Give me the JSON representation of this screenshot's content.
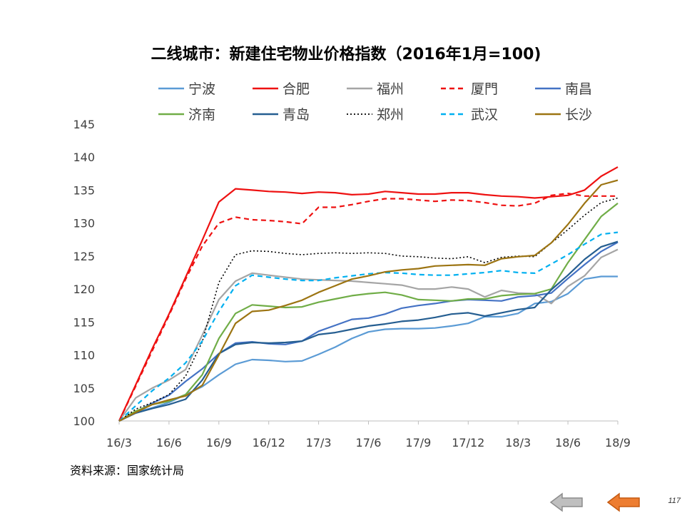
{
  "page": {
    "title": "二线城市：新建住宅物业价格指数（2016年1月=100)",
    "source": "资料来源：国家统计局",
    "page_number": "117"
  },
  "nav": {
    "prev_icon": "prev-arrow-icon",
    "next_icon": "next-arrow-icon"
  },
  "chart_data": {
    "type": "line",
    "title": "二线城市：新建住宅物业价格指数（2016年1月=100)",
    "xlabel": "",
    "ylabel": "",
    "ylim": [
      100,
      145
    ],
    "yticks": [
      100,
      105,
      110,
      115,
      120,
      125,
      130,
      135,
      140,
      145
    ],
    "xticks": [
      "16/3",
      "16/6",
      "16/9",
      "16/12",
      "17/3",
      "17/6",
      "17/9",
      "17/12",
      "18/3",
      "18/6",
      "18/9"
    ],
    "x": [
      "16/3",
      "16/4",
      "16/5",
      "16/6",
      "16/7",
      "16/8",
      "16/9",
      "16/10",
      "16/11",
      "16/12",
      "17/1",
      "17/2",
      "17/3",
      "17/4",
      "17/5",
      "17/6",
      "17/7",
      "17/8",
      "17/9",
      "17/10",
      "17/11",
      "17/12",
      "18/1",
      "18/2",
      "18/3",
      "18/4",
      "18/5",
      "18/6",
      "18/7",
      "18/8",
      "18/9"
    ],
    "grid": false,
    "legend": "top",
    "series": [
      {
        "name": "宁波",
        "color": "#5b9bd5",
        "dash": "solid",
        "values": [
          100,
          101.3,
          102,
          102.8,
          104,
          105.2,
          107,
          108.6,
          109.3,
          109.2,
          109,
          109.1,
          110.1,
          111.2,
          112.5,
          113.5,
          113.9,
          114,
          114,
          114.1,
          114.4,
          114.8,
          115.8,
          115.8,
          116.3,
          117.8,
          118.1,
          119.3,
          121.5,
          121.9,
          121.9
        ]
      },
      {
        "name": "合肥",
        "color": "#ee1111",
        "dash": "solid",
        "values": [
          100,
          105.5,
          111,
          116.2,
          121.8,
          127.4,
          133.2,
          135.2,
          135,
          134.8,
          134.7,
          134.5,
          134.7,
          134.6,
          134.3,
          134.4,
          134.8,
          134.6,
          134.4,
          134.4,
          134.6,
          134.6,
          134.3,
          134.1,
          134,
          133.8,
          134,
          134.2,
          135,
          137.1,
          138.5
        ]
      },
      {
        "name": "福州",
        "color": "#a5a5a5",
        "dash": "solid",
        "values": [
          100,
          103.5,
          105,
          106.2,
          107.8,
          113,
          118.4,
          121.2,
          122.4,
          122.1,
          121.8,
          121.5,
          121.4,
          121.3,
          121.2,
          121,
          120.8,
          120.6,
          120,
          120,
          120.3,
          120,
          118.8,
          119.8,
          119.4,
          119.3,
          117.8,
          120.4,
          122,
          124.8,
          126
        ]
      },
      {
        "name": "厦門",
        "color": "#ee1111",
        "dash": "dash",
        "values": [
          100,
          105.3,
          110.7,
          116,
          121.5,
          126.5,
          130,
          130.9,
          130.5,
          130.4,
          130.2,
          129.9,
          132.4,
          132.4,
          132.8,
          133.3,
          133.7,
          133.7,
          133.5,
          133.3,
          133.5,
          133.4,
          133.1,
          132.7,
          132.6,
          133,
          134.2,
          134.5,
          134.1,
          134.1,
          134.1
        ]
      },
      {
        "name": "南昌",
        "color": "#4472c4",
        "dash": "solid",
        "values": [
          100,
          101.4,
          102.7,
          103.9,
          106,
          107.9,
          110.2,
          111.8,
          112,
          111.7,
          111.6,
          112.1,
          113.6,
          114.5,
          115.4,
          115.6,
          116.2,
          117.1,
          117.5,
          117.8,
          118.2,
          118.4,
          118.3,
          118.2,
          118.8,
          119,
          119.4,
          121.6,
          123.7,
          125.7,
          127.1
        ]
      },
      {
        "name": "济南",
        "color": "#70ad47",
        "dash": "solid",
        "values": [
          100,
          101.5,
          102.5,
          103,
          104,
          107,
          112.5,
          116.3,
          117.6,
          117.4,
          117.2,
          117.3,
          118,
          118.5,
          119,
          119.3,
          119.5,
          119.1,
          118.4,
          118.3,
          118.2,
          118.5,
          118.5,
          119,
          119.2,
          119.3,
          120,
          124,
          127.5,
          131,
          133
        ]
      },
      {
        "name": "青岛",
        "color": "#255e91",
        "dash": "solid",
        "values": [
          100,
          101.2,
          101.9,
          102.5,
          103.3,
          106.2,
          110.2,
          111.6,
          111.9,
          111.8,
          111.9,
          112.1,
          113.1,
          113.4,
          113.9,
          114.4,
          114.7,
          115.1,
          115.3,
          115.7,
          116.2,
          116.4,
          115.9,
          116.4,
          116.9,
          117.2,
          119.9,
          122.1,
          124.5,
          126.4,
          127.2
        ]
      },
      {
        "name": "郑州",
        "color": "#000000",
        "dash": "dot",
        "values": [
          100,
          101.8,
          102.8,
          104,
          106.8,
          112,
          121,
          125.2,
          125.8,
          125.7,
          125.4,
          125.2,
          125.4,
          125.5,
          125.4,
          125.5,
          125.4,
          125,
          124.9,
          124.7,
          124.6,
          124.9,
          124,
          124.8,
          125,
          124.9,
          127,
          129,
          131.2,
          133.1,
          133.8
        ]
      },
      {
        "name": "武汉",
        "color": "#00b0f0",
        "dash": "dash",
        "values": [
          100,
          102.3,
          104.6,
          106.5,
          108.8,
          112.1,
          116.6,
          120.5,
          122.1,
          121.8,
          121.5,
          121.3,
          121.3,
          121.7,
          122,
          122.3,
          122.5,
          122.4,
          122.2,
          122.1,
          122.1,
          122.3,
          122.5,
          122.8,
          122.5,
          122.4,
          123.8,
          125.2,
          126.8,
          128.3,
          128.6
        ]
      },
      {
        "name": "长沙",
        "color": "#9c7412",
        "dash": "solid",
        "values": [
          100,
          101.3,
          102.5,
          103.2,
          103.8,
          105.4,
          110,
          114.8,
          116.6,
          116.8,
          117.5,
          118.3,
          119.5,
          120.5,
          121.5,
          122,
          122.6,
          122.9,
          123.1,
          123.5,
          123.6,
          123.7,
          123.6,
          124.6,
          124.9,
          125.1,
          127,
          129.8,
          133,
          135.8,
          136.5
        ]
      }
    ]
  }
}
